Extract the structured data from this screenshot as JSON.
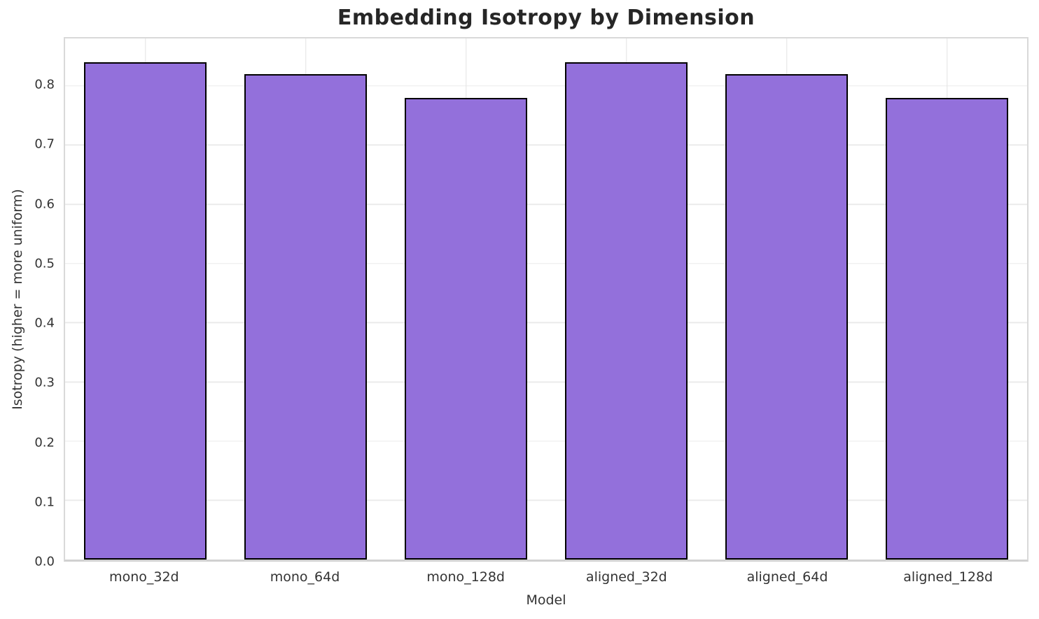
{
  "figure": {
    "background": "#ffffff"
  },
  "chart_data": {
    "type": "bar",
    "title": "Embedding Isotropy by Dimension",
    "categories": [
      "mono_32d",
      "mono_64d",
      "mono_128d",
      "aligned_32d",
      "aligned_64d",
      "aligned_128d"
    ],
    "values": [
      0.84,
      0.82,
      0.78,
      0.84,
      0.82,
      0.78
    ],
    "xlabel": "Model",
    "ylabel": "Isotropy (higher = more uniform)",
    "ytick_labels": [
      "0.0",
      "0.1",
      "0.2",
      "0.3",
      "0.4",
      "0.5",
      "0.6",
      "0.7",
      "0.8"
    ],
    "ylim": [
      0,
      0.88
    ],
    "grid": true,
    "legend_position": "none",
    "bar_color": "#9370DB",
    "bar_edge_color": "#000000",
    "grid_color_h": "#ebebeb",
    "grid_color_v": "#e4e4e4",
    "spine_color": "#d9d9d9",
    "tick_text_color": "#333333",
    "title_color": "#262626",
    "bar_width_fraction": 0.76
  }
}
